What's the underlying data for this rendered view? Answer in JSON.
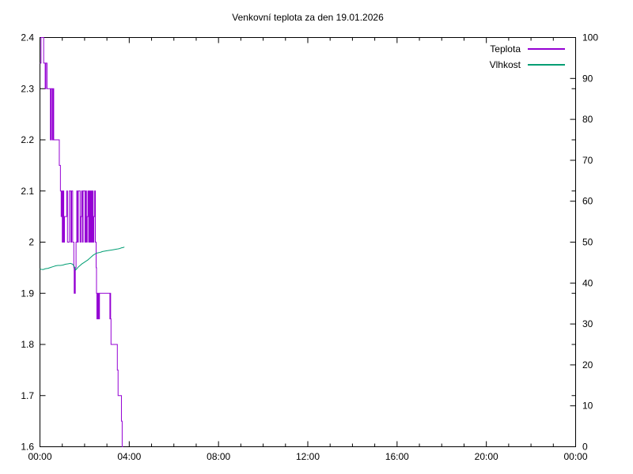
{
  "title": "Venkovní teplota za den 19.01.2026",
  "legend": {
    "items": [
      {
        "label": "Teplota",
        "color": "#9400d3"
      },
      {
        "label": "Vlhkost",
        "color": "#009e73"
      }
    ]
  },
  "chart_data": {
    "type": "line",
    "title": "Venkovní teplota za den 19.01.2026",
    "grid": false,
    "background": "#ffffff",
    "legend_position": "top-right-inside",
    "x_axis": {
      "tick_labels": [
        "00:00",
        "04:00",
        "08:00",
        "12:00",
        "16:00",
        "20:00",
        "00:00"
      ],
      "range_minutes": [
        0,
        1440
      ],
      "major_tick_minutes": 240,
      "minor_tick_minutes": 60
    },
    "y_left": {
      "tick_labels": [
        "2.4",
        "2.3",
        "2.2",
        "2.1",
        "2",
        "1.9",
        "1.8",
        "1.7",
        "1.6"
      ],
      "range": [
        1.6,
        2.4
      ],
      "tick_step": 0.1,
      "series": "Teplota"
    },
    "y_right": {
      "tick_labels": [
        "100",
        "90",
        "80",
        "70",
        "60",
        "50",
        "40",
        "30",
        "20",
        "10",
        "0"
      ],
      "range": [
        0,
        100
      ],
      "tick_step": 10,
      "series": "Vlhkost"
    },
    "series": [
      {
        "name": "Teplota",
        "color": "#9400d3",
        "style": "steps",
        "axis": "left",
        "points_format": [
          "minutes_since_midnight",
          "temperature_C"
        ],
        "points": [
          [
            0,
            2.35
          ],
          [
            3,
            2.4
          ],
          [
            8,
            2.4
          ],
          [
            10,
            2.35
          ],
          [
            13,
            2.35
          ],
          [
            14,
            2.3
          ],
          [
            16,
            2.35
          ],
          [
            19,
            2.3
          ],
          [
            26,
            2.3
          ],
          [
            28,
            2.2
          ],
          [
            30,
            2.3
          ],
          [
            33,
            2.2
          ],
          [
            35,
            2.3
          ],
          [
            37,
            2.2
          ],
          [
            50,
            2.2
          ],
          [
            52,
            2.15
          ],
          [
            55,
            2.1
          ],
          [
            57,
            2.05
          ],
          [
            58,
            2.1
          ],
          [
            60,
            2.0
          ],
          [
            62,
            2.1
          ],
          [
            64,
            2.0
          ],
          [
            66,
            2.05
          ],
          [
            70,
            2.05
          ],
          [
            72,
            2.1
          ],
          [
            74,
            2.0
          ],
          [
            77,
            2.0
          ],
          [
            79,
            2.1
          ],
          [
            81,
            2.1
          ],
          [
            83,
            2.0
          ],
          [
            85,
            2.1
          ],
          [
            88,
            2.0
          ],
          [
            91,
            1.95
          ],
          [
            92,
            1.9
          ],
          [
            93,
            1.95
          ],
          [
            94,
            1.9
          ],
          [
            95,
            1.95
          ],
          [
            97,
            2.0
          ],
          [
            99,
            2.1
          ],
          [
            101,
            2.0
          ],
          [
            103,
            2.1
          ],
          [
            106,
            2.1
          ],
          [
            108,
            2.0
          ],
          [
            110,
            2.05
          ],
          [
            112,
            2.1
          ],
          [
            114,
            2.0
          ],
          [
            116,
            2.1
          ],
          [
            119,
            2.1
          ],
          [
            121,
            2.0
          ],
          [
            123,
            2.1
          ],
          [
            125,
            2.0
          ],
          [
            127,
            2.05
          ],
          [
            129,
            2.1
          ],
          [
            131,
            2.0
          ],
          [
            133,
            2.1
          ],
          [
            135,
            2.0
          ],
          [
            137,
            2.1
          ],
          [
            139,
            2.0
          ],
          [
            141,
            2.1
          ],
          [
            143,
            2.0
          ],
          [
            145,
            2.05
          ],
          [
            147,
            2.1
          ],
          [
            149,
            2.0
          ],
          [
            151,
            1.95
          ],
          [
            152,
            1.9
          ],
          [
            153,
            1.85
          ],
          [
            154,
            1.9
          ],
          [
            155,
            1.85
          ],
          [
            156,
            1.9
          ],
          [
            158,
            1.85
          ],
          [
            160,
            1.9
          ],
          [
            186,
            1.9
          ],
          [
            188,
            1.85
          ],
          [
            189,
            1.9
          ],
          [
            190,
            1.85
          ],
          [
            191,
            1.8
          ],
          [
            206,
            1.8
          ],
          [
            208,
            1.75
          ],
          [
            210,
            1.7
          ],
          [
            217,
            1.7
          ],
          [
            219,
            1.65
          ],
          [
            221,
            1.6
          ],
          [
            223,
            1.6
          ]
        ]
      },
      {
        "name": "Vlhkost",
        "color": "#009e73",
        "style": "line",
        "axis": "right",
        "points_format": [
          "minutes_since_midnight",
          "humidity_percent"
        ],
        "points": [
          [
            0,
            43.4
          ],
          [
            8,
            43.3
          ],
          [
            15,
            43.5
          ],
          [
            22,
            43.6
          ],
          [
            28,
            43.8
          ],
          [
            35,
            44.0
          ],
          [
            42,
            44.2
          ],
          [
            48,
            44.3
          ],
          [
            55,
            44.3
          ],
          [
            62,
            44.4
          ],
          [
            68,
            44.6
          ],
          [
            75,
            44.7
          ],
          [
            82,
            44.8
          ],
          [
            88,
            44.6
          ],
          [
            93,
            43.9
          ],
          [
            96,
            43.2
          ],
          [
            100,
            43.6
          ],
          [
            104,
            44.0
          ],
          [
            108,
            44.3
          ],
          [
            113,
            44.7
          ],
          [
            118,
            45.0
          ],
          [
            123,
            45.3
          ],
          [
            128,
            45.6
          ],
          [
            133,
            46.0
          ],
          [
            138,
            46.4
          ],
          [
            143,
            46.8
          ],
          [
            148,
            47.1
          ],
          [
            152,
            47.3
          ],
          [
            156,
            47.4
          ],
          [
            162,
            47.5
          ],
          [
            168,
            47.7
          ],
          [
            174,
            47.8
          ],
          [
            180,
            47.9
          ],
          [
            187,
            48.0
          ],
          [
            194,
            48.1
          ],
          [
            200,
            48.2
          ],
          [
            207,
            48.3
          ],
          [
            213,
            48.4
          ],
          [
            219,
            48.6
          ],
          [
            224,
            48.7
          ],
          [
            227,
            48.8
          ]
        ]
      }
    ]
  }
}
